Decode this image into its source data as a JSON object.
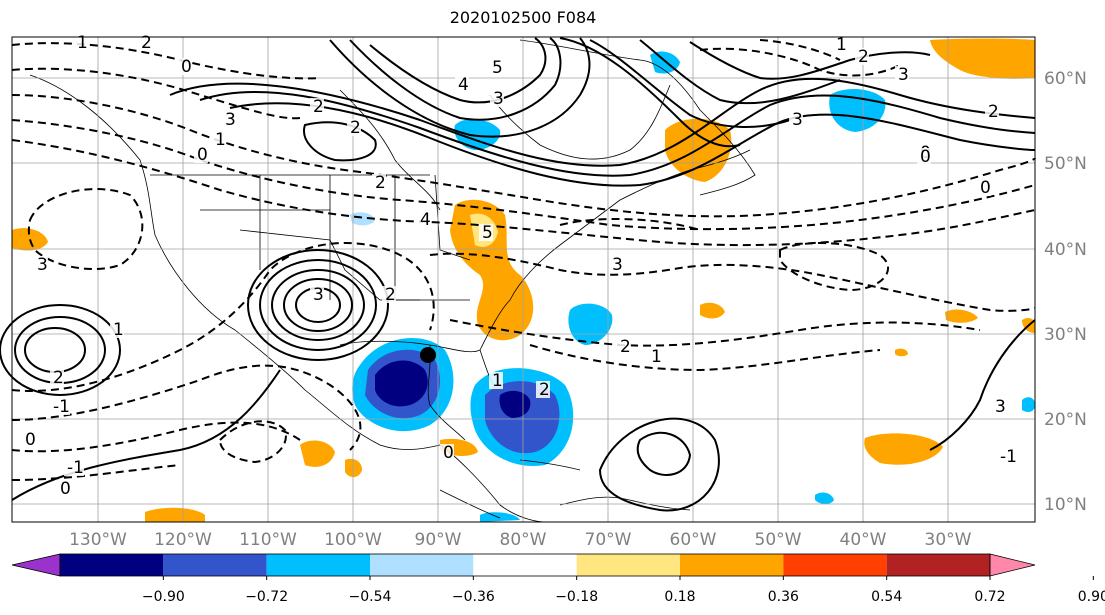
{
  "title": "2020102500 F084",
  "map": {
    "lon_ticks": [
      "130°W",
      "120°W",
      "110°W",
      "100°W",
      "90°W",
      "80°W",
      "70°W",
      "60°W",
      "50°W",
      "40°W",
      "30°W"
    ],
    "lat_ticks": [
      "60°N",
      "50°N",
      "40°N",
      "30°N",
      "20°N",
      "10°N"
    ],
    "contour_labels": [
      "1",
      "2",
      "0",
      "2",
      "5",
      "4",
      "3",
      "2",
      "3",
      "1",
      "0",
      "2",
      "4",
      "5",
      "3",
      "2",
      "3",
      "0",
      "1",
      "2",
      "0",
      "1",
      "2",
      "3",
      "3",
      "2",
      "1",
      "-1",
      "0",
      "-1",
      "0",
      "2",
      "3",
      "0",
      "1",
      "2",
      "3",
      "0",
      "-1"
    ],
    "grid": true
  },
  "colorbar": {
    "tick_labels": [
      "−0.90",
      "−0.72",
      "−0.54",
      "−0.36",
      "−0.18",
      "0.18",
      "0.36",
      "0.54",
      "0.72",
      "0.90"
    ],
    "colors": [
      "#9933cc",
      "#000080",
      "#3355cc",
      "#00bfff",
      "#b0e0ff",
      "#ffffff",
      "#ffe680",
      "#ffa500",
      "#ff4000",
      "#b22222",
      "#ff88aa"
    ]
  }
}
